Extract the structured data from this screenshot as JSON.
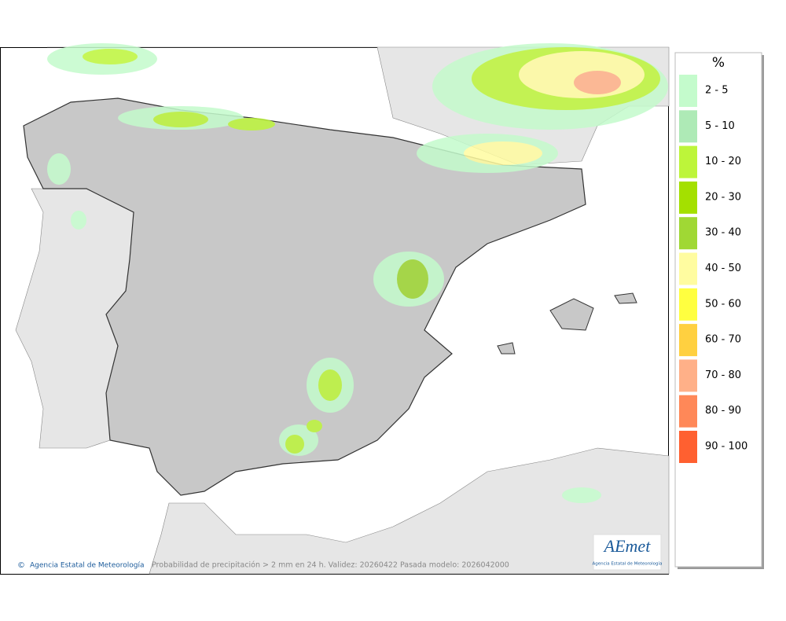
{
  "map": {
    "footer": "Probabilidad de precipitación > 2 mm en 24 h. Validez: 20260422 Pasada modelo: 2026042000",
    "credit": "Agencia Estatal de Meteorología",
    "logo": {
      "name": "AEmet",
      "subtitle": "Agencia Estatal de Meteorología"
    }
  },
  "legend": {
    "title": "%",
    "items": [
      {
        "label": "2 - 5",
        "color": "#c4fbcc"
      },
      {
        "label": "5 - 10",
        "color": "#aeeab6"
      },
      {
        "label": "10 - 20",
        "color": "#bdf53a"
      },
      {
        "label": "20 - 30",
        "color": "#a4e000"
      },
      {
        "label": "30 - 40",
        "color": "#a0d834"
      },
      {
        "label": "40 - 50",
        "color": "#fffca0"
      },
      {
        "label": "50 - 60",
        "color": "#ffff40"
      },
      {
        "label": "60 - 70",
        "color": "#ffd040"
      },
      {
        "label": "70 - 80",
        "color": "#ffb088"
      },
      {
        "label": "80 - 90",
        "color": "#ff8858"
      },
      {
        "label": "90 - 100",
        "color": "#ff6030"
      }
    ]
  }
}
